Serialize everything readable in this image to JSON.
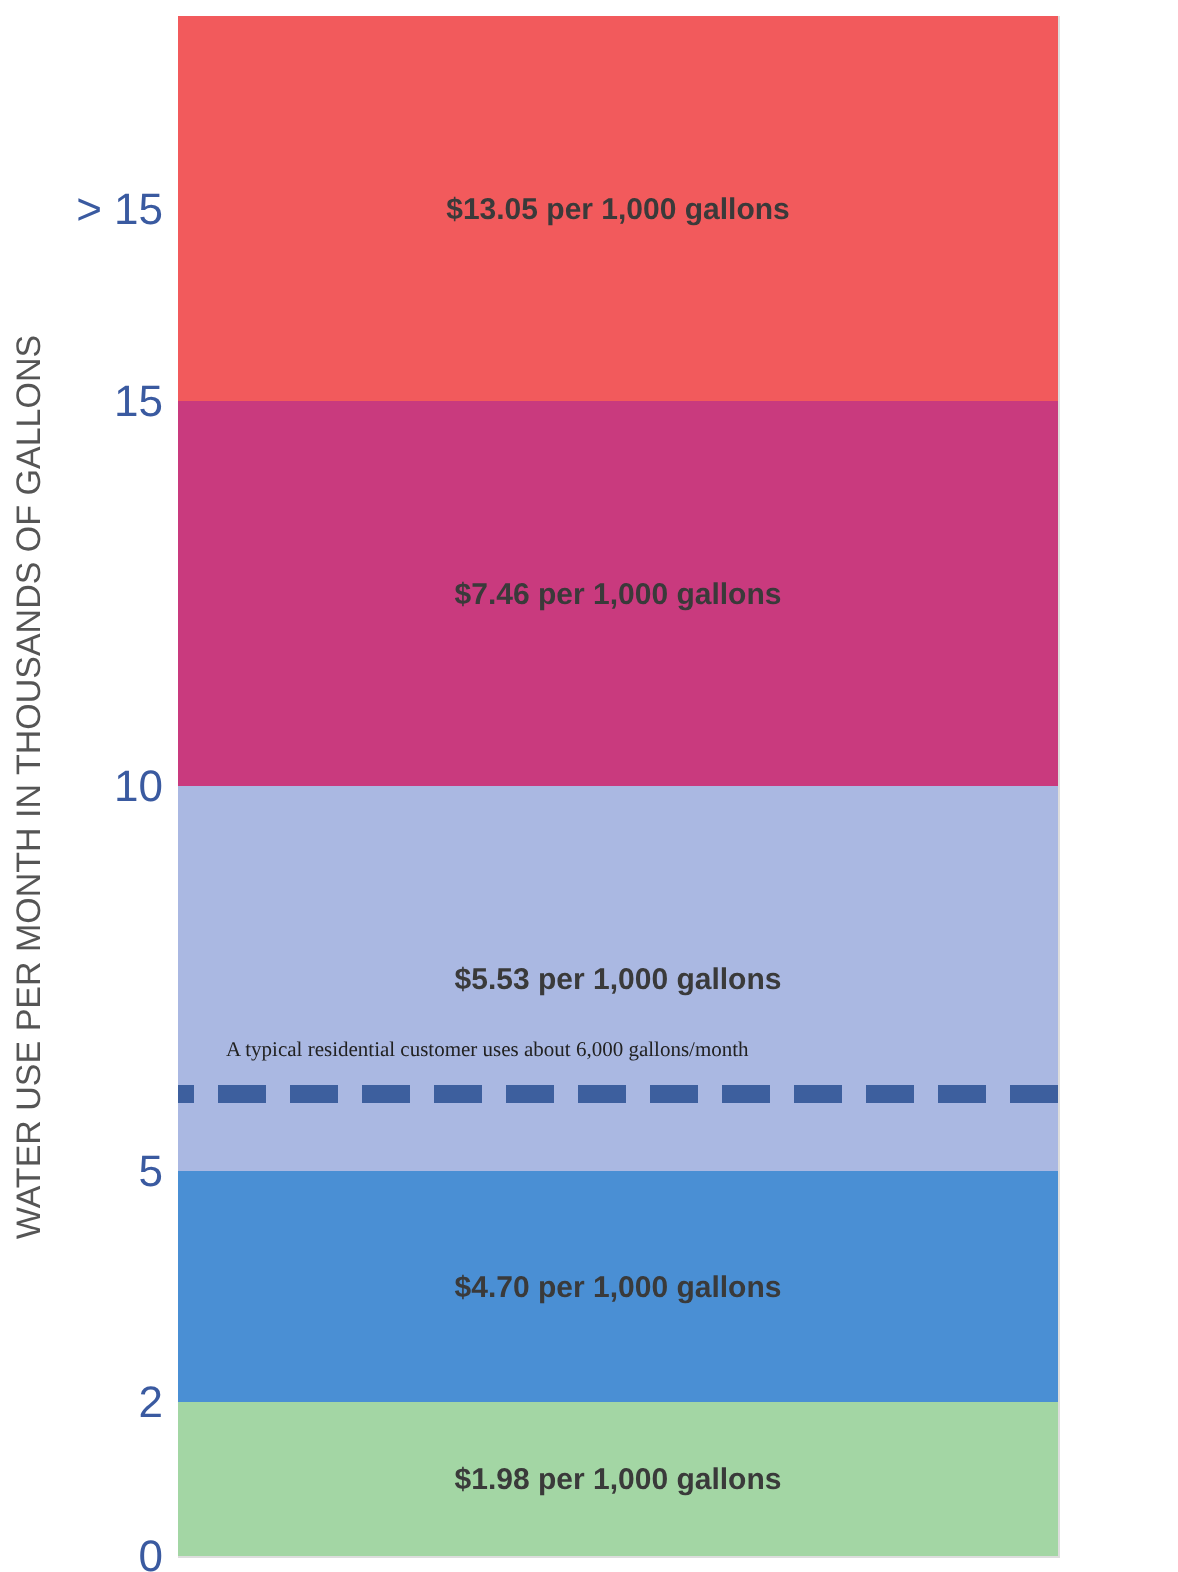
{
  "chart_data": {
    "type": "bar",
    "stacked": true,
    "categories": [
      null
    ],
    "ylabel": "WATER USE PER MONTH IN THOUSANDS OF GALLONS",
    "tick_labels": "y",
    "ylim": [
      0,
      20
    ],
    "yticks": [
      0,
      2,
      5,
      10,
      15,
      {
        "value": 17.5,
        "label": "> 15"
      }
    ],
    "series": [
      {
        "color": "#a3d6a4",
        "values": [
          2
        ]
      },
      {
        "color": "#4a8fd4",
        "values": [
          3
        ]
      },
      {
        "color": "#aab8e2",
        "values": [
          5
        ]
      },
      {
        "color": "#c93a7e",
        "values": [
          5
        ]
      },
      {
        "color": "#f25a5c",
        "values": [
          5
        ]
      }
    ],
    "annotations": [
      "$1.98 per 1,000 gallons",
      "$4.70 per 1,000 gallons",
      "$5.53 per 1,000 gallons",
      "$7.46 per 1,000 gallons",
      "$13.05 per 1,000 gallons"
    ],
    "ref_lines": [
      {
        "axis": "y",
        "value": 6,
        "label": "A typical residential customer uses about 6,000 gallons/month",
        "color": "#3d5f9e",
        "line_style": "dashed"
      }
    ]
  }
}
